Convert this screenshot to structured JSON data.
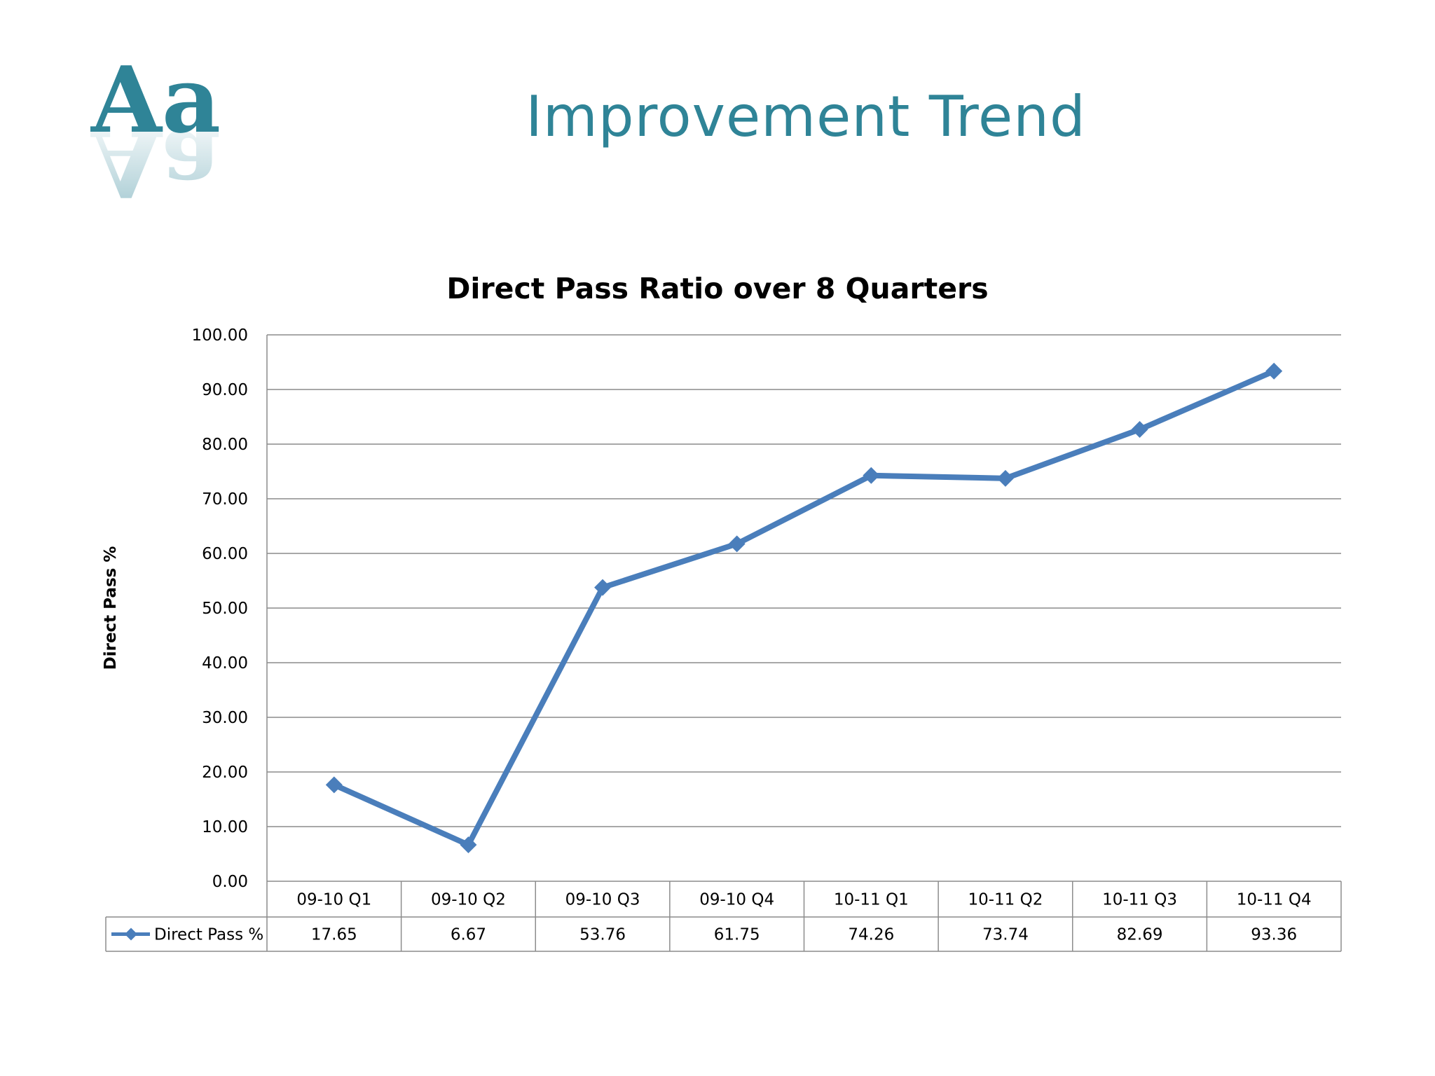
{
  "slide": {
    "title": "Improvement Trend",
    "logo_text": "Aa",
    "logo_color": "#2f8497"
  },
  "chart_data": {
    "type": "line",
    "title": "Direct Pass Ratio over 8 Quarters",
    "ylabel": "Direct Pass %",
    "xlabel": "",
    "categories": [
      "09-10 Q1",
      "09-10 Q2",
      "09-10 Q3",
      "09-10 Q4",
      "10-11 Q1",
      "10-11 Q2",
      "10-11 Q3",
      "10-11 Q4"
    ],
    "series": [
      {
        "name": "Direct Pass %",
        "values": [
          17.65,
          6.67,
          53.76,
          61.75,
          74.26,
          73.74,
          82.69,
          93.36
        ],
        "value_labels": [
          "17.65",
          "6.67",
          "53.76",
          "61.75",
          "74.26",
          "73.74",
          "82.69",
          "93.36"
        ],
        "color": "#4a7ebb",
        "marker": "diamond"
      }
    ],
    "ylim": [
      0,
      100
    ],
    "yticks": [
      "0.00",
      "10.00",
      "20.00",
      "30.00",
      "40.00",
      "50.00",
      "60.00",
      "70.00",
      "80.00",
      "90.00",
      "100.00"
    ],
    "grid": true,
    "legend": "data-table-below"
  }
}
